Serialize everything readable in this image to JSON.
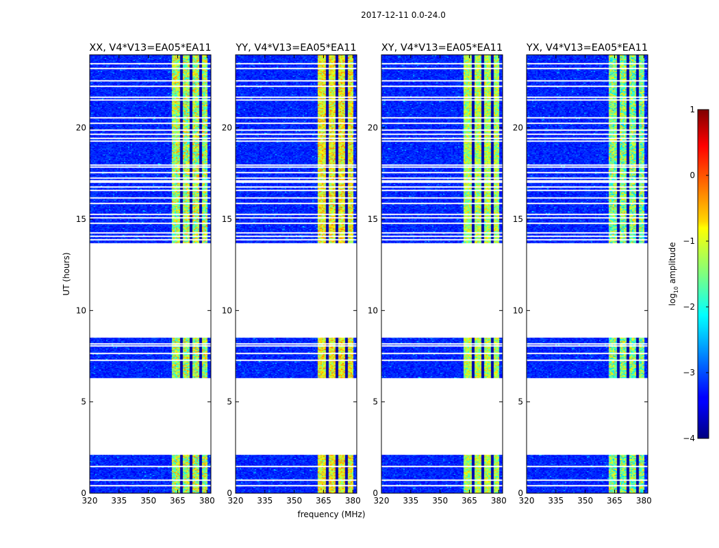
{
  "chart_data": {
    "type": "heatmap",
    "suptitle": "2017-12-11 0.0-24.0",
    "xlabel": "frequency (MHz)",
    "ylabel": "UT (hours)",
    "xlim": [
      320,
      382
    ],
    "ylim": [
      0,
      24
    ],
    "xticks": [
      320,
      335,
      350,
      365,
      380
    ],
    "yticks": [
      0,
      5,
      10,
      15,
      20
    ],
    "panels": [
      {
        "title": "XX, V4*V13=EA05*EA11",
        "polarization": "XX",
        "rfi_shape": "sparkly"
      },
      {
        "title": "YY, V4*V13=EA05*EA11",
        "polarization": "YY",
        "rfi_shape": "strong"
      },
      {
        "title": "XY, V4*V13=EA05*EA11",
        "polarization": "XY",
        "rfi_shape": "medium"
      },
      {
        "title": "YX, V4*V13=EA05*EA11",
        "polarization": "YX",
        "rfi_shape": "speckled"
      }
    ],
    "data_segments_ut": [
      [
        0,
        2.1
      ],
      [
        6.3,
        8.5
      ],
      [
        13.7,
        24
      ]
    ],
    "flagged_rows_ut": [
      0.45,
      0.75,
      1.5,
      2.2,
      7.3,
      7.7,
      8.1,
      8.2,
      13.9,
      14.1,
      14.3,
      14.8,
      15.1,
      15.3,
      15.9,
      16.2,
      16.6,
      16.8,
      17.05,
      17.15,
      17.3,
      17.6,
      17.9,
      18.0,
      19.3,
      19.45,
      19.7,
      19.9,
      20.3,
      20.6,
      21.55,
      21.7,
      22.3,
      22.6,
      23.3,
      23.55
    ],
    "rfi_band_mhz": [
      362,
      380
    ],
    "rfi_gaps_mhz": [
      366.5,
      371.5,
      376.5
    ],
    "colorbar": {
      "label": "log",
      "label_sub": "10",
      "label_rest": " amplitude",
      "range": [
        -4,
        1
      ],
      "ticks": [
        -4,
        -3,
        -2,
        -1,
        0,
        1
      ],
      "tick_labels": [
        "−4",
        "−3",
        "−2",
        "−1",
        "0",
        "1"
      ],
      "colormap": "jet"
    }
  }
}
